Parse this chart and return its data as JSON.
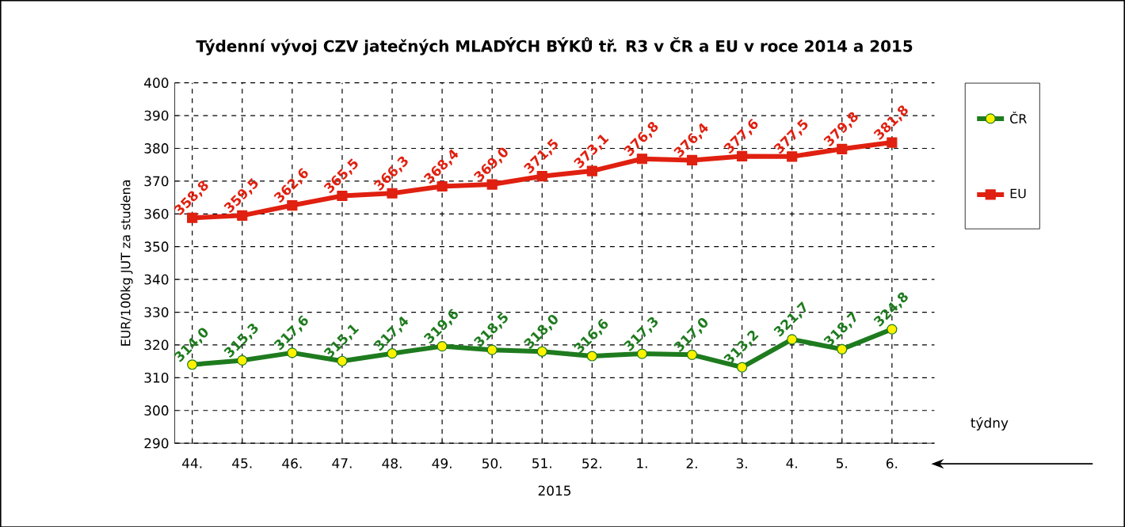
{
  "chart_data": {
    "type": "line",
    "title": "Týdenní vývoj CZV jatečných MLADÝCH BÝKŮ tř. R3  v ČR a EU v roce 2014 a 2015",
    "xlabel": "2015",
    "ylabel": "EUR/100kg  JUT za studena",
    "annotations": [
      "týdny"
    ],
    "categories": [
      "44.",
      "45.",
      "46.",
      "47.",
      "48.",
      "49.",
      "50.",
      "51.",
      "52.",
      "1.",
      "2.",
      "3.",
      "4.",
      "5.",
      "6."
    ],
    "ylim": [
      290,
      400
    ],
    "yticks": [
      290,
      300,
      310,
      320,
      330,
      340,
      350,
      360,
      370,
      380,
      390,
      400
    ],
    "grid": true,
    "legend": "right",
    "series": [
      {
        "name": "ČR",
        "color": "#1e7b1e",
        "marker": "circle",
        "values": [
          314.0,
          315.3,
          317.6,
          315.1,
          317.4,
          319.6,
          318.5,
          318.0,
          316.6,
          317.3,
          317.0,
          313.2,
          321.7,
          318.7,
          324.8
        ],
        "value_labels": [
          "314,0",
          "315,3",
          "317,6",
          "315,1",
          "317,4",
          "319,6",
          "318,5",
          "318,0",
          "316,6",
          "317,3",
          "317,0",
          "313,2",
          "321,7",
          "318,7",
          "324,8"
        ]
      },
      {
        "name": "EU",
        "color": "#e02010",
        "marker": "square",
        "values": [
          358.8,
          359.5,
          362.6,
          365.5,
          366.3,
          368.4,
          369.0,
          371.5,
          373.1,
          376.8,
          376.4,
          377.6,
          377.5,
          379.8,
          381.8
        ],
        "value_labels": [
          "358,8",
          "359,5",
          "362,6",
          "365,5",
          "366,3",
          "368,4",
          "369,0",
          "371,5",
          "373,1",
          "376,8",
          "376,4",
          "377,6",
          "377,5",
          "379,8",
          "381,8"
        ]
      }
    ]
  }
}
